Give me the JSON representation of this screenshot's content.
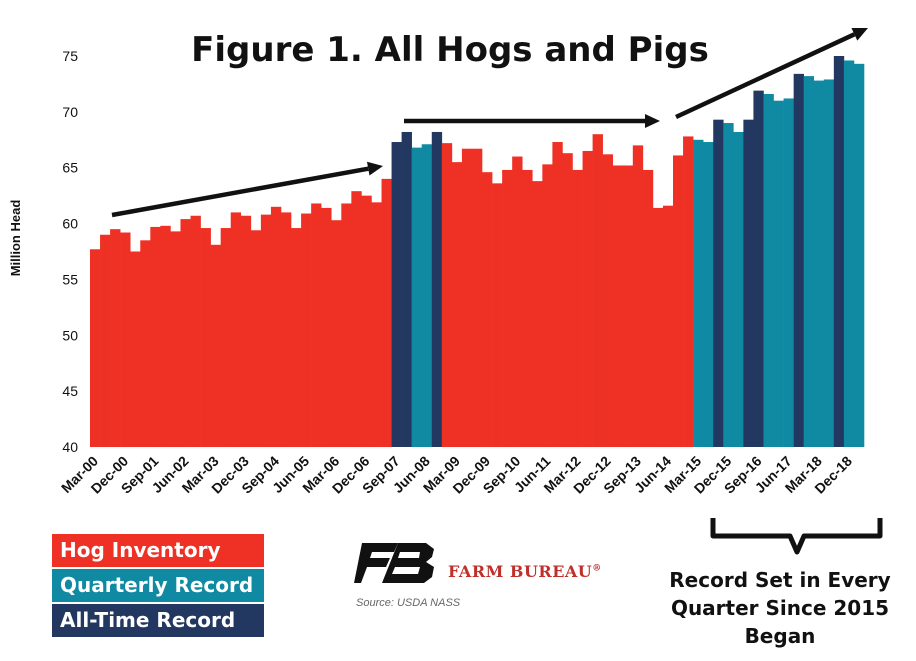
{
  "chart_data": {
    "type": "bar",
    "title": "Figure 1. All Hogs and Pigs",
    "ylabel": "Million Head",
    "xlabel": "",
    "ylim": [
      40,
      75
    ],
    "yticks": [
      40,
      45,
      50,
      55,
      60,
      65,
      70,
      75
    ],
    "xtick_labels": [
      "Mar-00",
      "Dec-00",
      "Sep-01",
      "Jun-02",
      "Mar-03",
      "Dec-03",
      "Sep-04",
      "Jun-05",
      "Mar-06",
      "Dec-06",
      "Sep-07",
      "Jun-08",
      "Mar-09",
      "Dec-09",
      "Sep-10",
      "Jun-11",
      "Mar-12",
      "Dec-12",
      "Sep-13",
      "Jun-14",
      "Mar-15",
      "Dec-15",
      "Sep-16",
      "Jun-17",
      "Mar-18",
      "Dec-18"
    ],
    "grid": false,
    "legend_placement": "bottom-left",
    "values": [
      57.7,
      59.0,
      59.5,
      59.2,
      57.5,
      58.5,
      59.7,
      59.8,
      59.3,
      60.4,
      60.7,
      59.6,
      58.1,
      59.6,
      61.0,
      60.7,
      59.4,
      60.8,
      61.5,
      61.0,
      59.6,
      60.9,
      61.8,
      61.4,
      60.3,
      61.8,
      62.9,
      62.5,
      61.9,
      64.0,
      67.3,
      68.2,
      66.8,
      67.1,
      68.2,
      67.2,
      65.5,
      66.7,
      66.7,
      64.6,
      63.6,
      64.8,
      66.0,
      64.8,
      63.8,
      65.3,
      67.3,
      66.3,
      64.8,
      66.5,
      68.0,
      66.2,
      65.2,
      65.2,
      67.0,
      64.8,
      61.4,
      61.6,
      66.1,
      67.8,
      67.5,
      67.3,
      69.3,
      69.0,
      68.2,
      69.3,
      71.9,
      71.6,
      71.0,
      71.2,
      73.4,
      73.2,
      72.8,
      72.9,
      75.0,
      74.6,
      74.3
    ],
    "categories_per_bar": "quarterly Mar-00 through Mar-19",
    "bar_types": [
      "H",
      "H",
      "H",
      "H",
      "H",
      "H",
      "H",
      "H",
      "H",
      "H",
      "H",
      "H",
      "H",
      "H",
      "H",
      "H",
      "H",
      "H",
      "H",
      "H",
      "H",
      "H",
      "H",
      "H",
      "H",
      "H",
      "H",
      "H",
      "H",
      "H",
      "A",
      "A",
      "Q",
      "Q",
      "A",
      "H",
      "H",
      "H",
      "H",
      "H",
      "H",
      "H",
      "H",
      "H",
      "H",
      "H",
      "H",
      "H",
      "H",
      "H",
      "H",
      "H",
      "H",
      "H",
      "H",
      "H",
      "H",
      "H",
      "H",
      "H",
      "Q",
      "Q",
      "A",
      "Q",
      "Q",
      "A",
      "A",
      "Q",
      "Q",
      "Q",
      "A",
      "Q",
      "Q",
      "Q",
      "A",
      "Q",
      "Q"
    ],
    "series": [
      {
        "name": "Hog Inventory",
        "code": "H"
      },
      {
        "name": "Quarterly Record",
        "code": "Q"
      },
      {
        "name": "All-Time Record",
        "code": "A"
      }
    ]
  },
  "colors": {
    "hog_inventory": "#ee3124",
    "quarterly_record": "#108aa3",
    "all_time_record": "#233860",
    "arrow": "#111111",
    "brand_red": "#c0302b"
  },
  "legend": {
    "hog_inventory": "Hog Inventory",
    "quarterly_record": "Quarterly Record",
    "all_time_record": "All-Time Record"
  },
  "brand": {
    "name": "FARM BUREAU",
    "mark": "®",
    "logo_icon": "farm-bureau-fb-logo"
  },
  "source": "Source: USDA NASS",
  "annotation": {
    "line1": "Record Set in Every",
    "line2": "Quarter Since 2015",
    "line3": "Began"
  }
}
